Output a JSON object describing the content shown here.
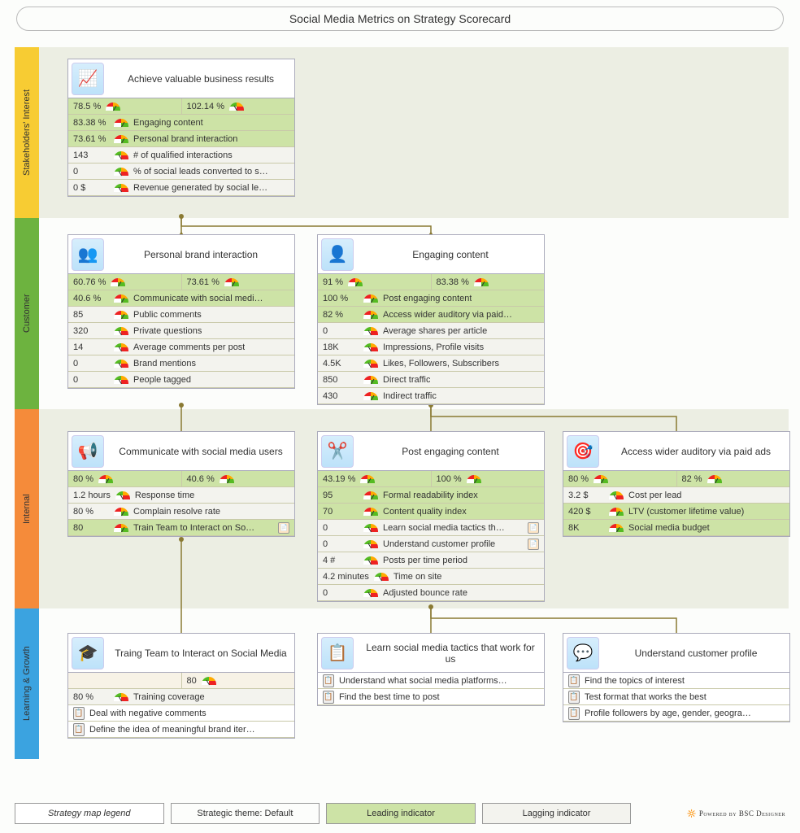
{
  "title": "Social Media Metrics on Strategy Scorecard",
  "perspectives": {
    "stake": "Stakeholders' Interest",
    "cust": "Customer",
    "int": "Internal",
    "lg": "Learning & Growth"
  },
  "colors": {
    "stake": "#f7cc33",
    "cust": "#6db33f",
    "int": "#f58b3a",
    "lg": "#3ba3e0",
    "lead_bg": "#cde3a6",
    "lag_bg": "#f3f3ee",
    "band_alt": "#eceee3"
  },
  "cards": {
    "achieve": {
      "title": "Achieve valuable business results",
      "icon": "📈",
      "kpi": [
        {
          "v": "78.5 %",
          "g": "g"
        },
        {
          "v": "102.14 %",
          "g": "r"
        }
      ],
      "rows": [
        {
          "v": "83.38 %",
          "t": "Engaging content",
          "c": "lead",
          "g": "g"
        },
        {
          "v": "73.61 %",
          "t": "Personal brand interaction",
          "c": "lead",
          "g": "g"
        },
        {
          "v": "143",
          "t": "# of qualified interactions",
          "c": "lag",
          "g": "r"
        },
        {
          "v": "0",
          "t": "% of social leads converted to s…",
          "c": "lag",
          "g": "r"
        },
        {
          "v": "0 $",
          "t": "Revenue generated by social le…",
          "c": "lag",
          "g": "r"
        }
      ]
    },
    "pbi": {
      "title": "Personal brand interaction",
      "icon": "👥",
      "kpi": [
        {
          "v": "60.76 %",
          "g": "g"
        },
        {
          "v": "73.61 %",
          "g": "g"
        }
      ],
      "rows": [
        {
          "v": "40.6 %",
          "t": "Communicate with social medi…",
          "c": "lead",
          "g": "g"
        },
        {
          "v": "85",
          "t": "Public comments",
          "c": "lag",
          "g": "g"
        },
        {
          "v": "320",
          "t": "Private questions",
          "c": "lag",
          "g": "r"
        },
        {
          "v": "14",
          "t": "Average comments per post",
          "c": "lag",
          "g": "r"
        },
        {
          "v": "0",
          "t": "Brand mentions",
          "c": "lag",
          "g": "r"
        },
        {
          "v": "0",
          "t": "People tagged",
          "c": "lag",
          "g": "r"
        }
      ]
    },
    "eng": {
      "title": "Engaging content",
      "icon": "👤",
      "kpi": [
        {
          "v": "91 %",
          "g": "g"
        },
        {
          "v": "83.38 %",
          "g": "g"
        }
      ],
      "rows": [
        {
          "v": "100 %",
          "t": "Post engaging content",
          "c": "lead",
          "g": "g"
        },
        {
          "v": "82 %",
          "t": "Access wider auditory via paid…",
          "c": "lead",
          "g": "g"
        },
        {
          "v": "0",
          "t": "Average shares per article",
          "c": "lag",
          "g": "r"
        },
        {
          "v": "18K",
          "t": "Impressions, Profile visits",
          "c": "lag",
          "g": "r"
        },
        {
          "v": "4.5K",
          "t": "Likes, Followers, Subscribers",
          "c": "lag",
          "g": "r"
        },
        {
          "v": "850",
          "t": "Direct traffic",
          "c": "lag",
          "g": "g"
        },
        {
          "v": "430",
          "t": "Indirect traffic",
          "c": "lag",
          "g": "g"
        }
      ]
    },
    "comm": {
      "title": "Communicate with social media users",
      "icon": "📢",
      "kpi": [
        {
          "v": "80 %",
          "g": "g"
        },
        {
          "v": "40.6 %",
          "g": "g"
        }
      ],
      "rows": [
        {
          "v": "1.2 hours",
          "t": "Response time",
          "c": "lag",
          "g": "r"
        },
        {
          "v": "80 %",
          "t": "Complain resolve rate",
          "c": "lag",
          "g": "g"
        },
        {
          "v": "80",
          "t": "Train Team to Interact on So…",
          "c": "lead",
          "g": "g",
          "doc": true
        }
      ]
    },
    "post": {
      "title": "Post engaging content",
      "icon": "✂️",
      "kpi": [
        {
          "v": "43.19 %",
          "g": "g"
        },
        {
          "v": "100 %",
          "g": "g"
        }
      ],
      "rows": [
        {
          "v": "95",
          "t": "Formal readability index",
          "c": "lead",
          "g": "g"
        },
        {
          "v": "70",
          "t": "Content quality index",
          "c": "lead",
          "g": "g"
        },
        {
          "v": "0",
          "t": "Learn social media tactics th…",
          "c": "lag",
          "g": "r",
          "doc": true
        },
        {
          "v": "0",
          "t": "Understand customer profile",
          "c": "lag",
          "g": "r",
          "doc": true
        },
        {
          "v": "4 #",
          "t": "Posts per time period",
          "c": "lag",
          "g": "r"
        },
        {
          "v": "4.2 minutes",
          "t": "Time on site",
          "c": "lag",
          "g": "r"
        },
        {
          "v": "0",
          "t": "Adjusted bounce rate",
          "c": "lag",
          "g": "r"
        }
      ]
    },
    "ads": {
      "title": "Access wider auditory via paid ads",
      "icon": "🎯",
      "kpi": [
        {
          "v": "80 %",
          "g": "g"
        },
        {
          "v": "82 %",
          "g": "g"
        }
      ],
      "rows": [
        {
          "v": "3.2 $",
          "t": "Cost per lead",
          "c": "lag",
          "g": "r"
        },
        {
          "v": "420 $",
          "t": "LTV (customer lifetime value)",
          "c": "lead",
          "g": "g"
        },
        {
          "v": "8K",
          "t": "Social media budget",
          "c": "lead",
          "g": "g"
        }
      ]
    },
    "train": {
      "title": "Traing Team to Interact on Social Media",
      "icon": "🎓",
      "kpi": [
        {
          "v": "",
          "g": ""
        },
        {
          "v": "80",
          "g": "r"
        }
      ],
      "rows": [
        {
          "v": "80 %",
          "t": "Training coverage",
          "c": "lag",
          "g": "r"
        },
        {
          "clip": true,
          "t": "Deal with negative comments",
          "c": "sub"
        },
        {
          "clip": true,
          "t": "Define the idea of meaningful brand iter…",
          "c": "sub"
        }
      ]
    },
    "learn": {
      "title": "Learn social media tactics that work for us",
      "icon": "📋",
      "rows": [
        {
          "clip": true,
          "t": "Understand what social media platforms…",
          "c": "sub"
        },
        {
          "clip": true,
          "t": "Find the best time to post",
          "c": "sub"
        }
      ]
    },
    "ucust": {
      "title": "Understand customer profile",
      "icon": "💬",
      "rows": [
        {
          "clip": true,
          "t": "Find the topics of interest",
          "c": "sub"
        },
        {
          "clip": true,
          "t": "Test format that works the best",
          "c": "sub"
        },
        {
          "clip": true,
          "t": "Profile followers by age, gender, geogra…",
          "c": "sub"
        }
      ]
    }
  },
  "legend": {
    "title": "Strategy map legend",
    "theme": "Strategic theme: Default",
    "lead": "Leading indicator",
    "lag": "Lagging indicator",
    "powered": "Powered by BSC Designer"
  }
}
